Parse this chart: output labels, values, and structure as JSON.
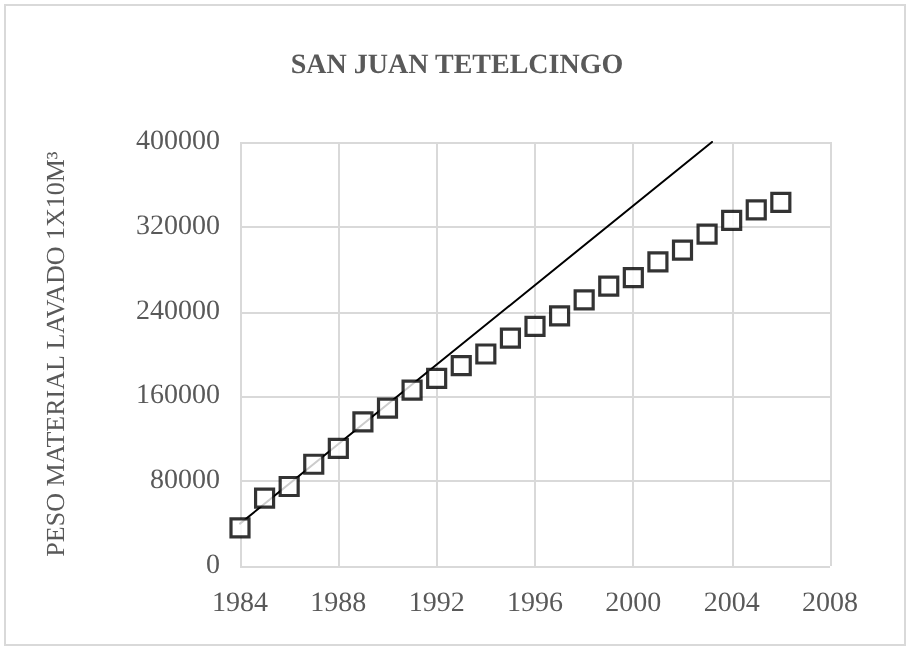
{
  "chart_data": {
    "type": "scatter",
    "title": "SAN JUAN TETELCINGO",
    "ylabel": "PESO MATERIAL LAVADO 1X10M³",
    "series": [
      {
        "color": "#000000",
        "marker": "square",
        "x": [
          1984,
          1985,
          1986,
          1987,
          1988,
          1989,
          1990,
          1991,
          1992,
          1993,
          1994,
          1995,
          1996,
          1997,
          1998,
          1999,
          2000,
          2001,
          2002,
          2003,
          2004,
          2005,
          2006
        ],
        "values": [
          36000,
          64000,
          75000,
          96000,
          111000,
          136000,
          149000,
          166000,
          177000,
          189000,
          200000,
          215000,
          226000,
          236000,
          251000,
          264000,
          272000,
          287000,
          298000,
          313000,
          326000,
          336000,
          343000
        ]
      },
      {
        "type": "line",
        "color": "#000000",
        "line_style": "solid",
        "marker": "none",
        "x": [
          1984,
          2003.2
        ],
        "values": [
          40000,
          400000
        ]
      }
    ],
    "xlim": [
      1984,
      2008
    ],
    "xticks": [
      1984,
      1988,
      1992,
      1996,
      2000,
      2004,
      2008
    ],
    "ylim": [
      0,
      400000
    ],
    "yticks": [
      0,
      80000,
      160000,
      240000,
      320000,
      400000
    ],
    "grid": true
  }
}
